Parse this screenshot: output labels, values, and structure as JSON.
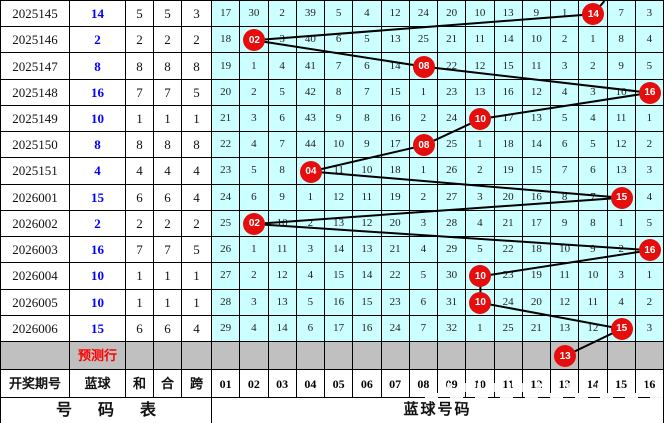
{
  "colors": {
    "grid_cell_bg": "#ccffff",
    "gray_row_bg": "#c0c0c0",
    "ball_red": "#e60d0d",
    "blue_value_text": "#0000ff",
    "prediction_text_red": "#ff0000",
    "line": "#000000",
    "border": "#000000"
  },
  "left_table": {
    "headers": [
      "开奖期号",
      "蓝球",
      "和",
      "合",
      "跨"
    ]
  },
  "prediction": {
    "label": "预测行",
    "ball_col": 13,
    "label_ball": "13"
  },
  "footer": {
    "left_label": "号码表",
    "right_label": "蓝球号码"
  },
  "chart_data": {
    "type": "table",
    "description": "Blue-ball trend chart: rows are draw periods; 16 columns are blue numbers 01-16; cell values are miss counts; red balls mark the drawn blue number; black polyline connects consecutive draws down to a predicted 13.",
    "column_headers": [
      "01",
      "02",
      "03",
      "04",
      "05",
      "06",
      "07",
      "08",
      "09",
      "10",
      "11",
      "12",
      "13",
      "14",
      "15",
      "16"
    ],
    "blue_series": [
      14,
      2,
      8,
      16,
      10,
      8,
      4,
      15,
      2,
      16,
      10,
      10,
      15
    ],
    "rows": [
      {
        "period": "2025145",
        "blue": "14",
        "he": "5",
        "hew": "5",
        "kua": "3",
        "ball_col": 14,
        "ball_label": "14",
        "miss": [
          17,
          30,
          2,
          39,
          5,
          4,
          12,
          24,
          20,
          10,
          13,
          9,
          1,
          null,
          7,
          3
        ]
      },
      {
        "period": "2025146",
        "blue": "2",
        "he": "2",
        "hew": "2",
        "kua": "2",
        "ball_col": 2,
        "ball_label": "02",
        "miss": [
          18,
          null,
          3,
          40,
          6,
          5,
          13,
          25,
          21,
          11,
          14,
          10,
          2,
          1,
          8,
          4
        ]
      },
      {
        "period": "2025147",
        "blue": "8",
        "he": "8",
        "hew": "8",
        "kua": "8",
        "ball_col": 8,
        "ball_label": "08",
        "miss": [
          19,
          1,
          4,
          41,
          7,
          6,
          14,
          null,
          22,
          12,
          15,
          11,
          3,
          2,
          9,
          5
        ]
      },
      {
        "period": "2025148",
        "blue": "16",
        "he": "7",
        "hew": "7",
        "kua": "5",
        "ball_col": 16,
        "ball_label": "16",
        "miss": [
          20,
          2,
          5,
          42,
          8,
          7,
          15,
          1,
          23,
          13,
          16,
          12,
          4,
          3,
          10,
          null
        ]
      },
      {
        "period": "2025149",
        "blue": "10",
        "he": "1",
        "hew": "1",
        "kua": "1",
        "ball_col": 10,
        "ball_label": "10",
        "miss": [
          21,
          3,
          6,
          43,
          9,
          8,
          16,
          2,
          24,
          null,
          17,
          13,
          5,
          4,
          11,
          1
        ]
      },
      {
        "period": "2025150",
        "blue": "8",
        "he": "8",
        "hew": "8",
        "kua": "8",
        "ball_col": 8,
        "ball_label": "08",
        "miss": [
          22,
          4,
          7,
          44,
          10,
          9,
          17,
          null,
          25,
          1,
          18,
          14,
          6,
          5,
          12,
          2
        ]
      },
      {
        "period": "2025151",
        "blue": "4",
        "he": "4",
        "hew": "4",
        "kua": "4",
        "ball_col": 4,
        "ball_label": "04",
        "miss": [
          23,
          5,
          8,
          null,
          11,
          10,
          18,
          1,
          26,
          2,
          19,
          15,
          7,
          6,
          13,
          3
        ]
      },
      {
        "period": "2026001",
        "blue": "15",
        "he": "6",
        "hew": "6",
        "kua": "4",
        "ball_col": 15,
        "ball_label": "15",
        "miss": [
          24,
          6,
          9,
          1,
          12,
          11,
          19,
          2,
          27,
          3,
          20,
          16,
          8,
          7,
          null,
          4
        ]
      },
      {
        "period": "2026002",
        "blue": "2",
        "he": "2",
        "hew": "2",
        "kua": "2",
        "ball_col": 2,
        "ball_label": "02",
        "miss": [
          25,
          null,
          10,
          2,
          13,
          12,
          20,
          3,
          28,
          4,
          21,
          17,
          9,
          8,
          1,
          5
        ]
      },
      {
        "period": "2026003",
        "blue": "16",
        "he": "7",
        "hew": "7",
        "kua": "5",
        "ball_col": 16,
        "ball_label": "16",
        "miss": [
          26,
          1,
          11,
          3,
          14,
          13,
          21,
          4,
          29,
          5,
          22,
          18,
          10,
          9,
          2,
          null
        ]
      },
      {
        "period": "2026004",
        "blue": "10",
        "he": "1",
        "hew": "1",
        "kua": "1",
        "ball_col": 10,
        "ball_label": "10",
        "miss": [
          27,
          2,
          12,
          4,
          15,
          14,
          22,
          5,
          30,
          null,
          23,
          19,
          11,
          10,
          3,
          1
        ]
      },
      {
        "period": "2026005",
        "blue": "10",
        "he": "1",
        "hew": "1",
        "kua": "1",
        "ball_col": 10,
        "ball_label": "10",
        "miss": [
          28,
          3,
          13,
          5,
          16,
          15,
          23,
          6,
          31,
          null,
          24,
          20,
          12,
          11,
          4,
          2
        ]
      },
      {
        "period": "2026006",
        "blue": "15",
        "he": "6",
        "hew": "6",
        "kua": "4",
        "ball_col": 15,
        "ball_label": "15",
        "miss": [
          29,
          4,
          14,
          6,
          17,
          16,
          24,
          7,
          32,
          1,
          25,
          21,
          13,
          12,
          null,
          3
        ]
      }
    ],
    "prediction_ball": {
      "col": 13,
      "label": "13"
    }
  }
}
